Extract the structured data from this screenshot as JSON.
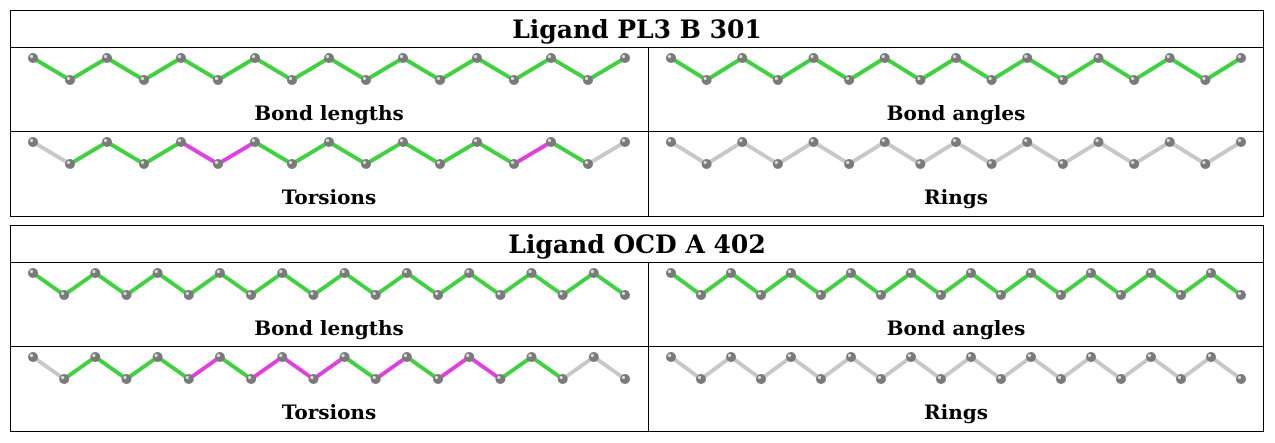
{
  "colors": {
    "ok_bond": "#3fd13f",
    "outlier_bond": "#e040e0",
    "neutral_bond": "#c8c8c8",
    "atom": "#7a7a7a"
  },
  "panel_labels": {
    "bond_lengths": "Bond lengths",
    "bond_angles": "Bond angles",
    "torsions": "Torsions",
    "rings": "Rings"
  },
  "ligands": [
    {
      "title": "Ligand PL3 B 301",
      "panels": {
        "bond_lengths": [
          "ok",
          "ok",
          "ok",
          "ok",
          "ok",
          "ok",
          "ok",
          "ok",
          "ok",
          "ok",
          "ok",
          "ok",
          "ok",
          "ok",
          "ok",
          "ok"
        ],
        "bond_angles": [
          "ok",
          "ok",
          "ok",
          "ok",
          "ok",
          "ok",
          "ok",
          "ok",
          "ok",
          "ok",
          "ok",
          "ok",
          "ok",
          "ok",
          "ok",
          "ok"
        ],
        "torsions": [
          "neutral",
          "ok",
          "ok",
          "ok",
          "outlier",
          "outlier",
          "ok",
          "ok",
          "ok",
          "ok",
          "ok",
          "ok",
          "ok",
          "outlier",
          "ok",
          "neutral"
        ],
        "rings": [
          "neutral",
          "neutral",
          "neutral",
          "neutral",
          "neutral",
          "neutral",
          "neutral",
          "neutral",
          "neutral",
          "neutral",
          "neutral",
          "neutral",
          "neutral",
          "neutral",
          "neutral",
          "neutral"
        ]
      }
    },
    {
      "title": "Ligand OCD A 402",
      "panels": {
        "bond_lengths": [
          "ok",
          "ok",
          "ok",
          "ok",
          "ok",
          "ok",
          "ok",
          "ok",
          "ok",
          "ok",
          "ok",
          "ok",
          "ok",
          "ok",
          "ok",
          "ok",
          "ok",
          "ok",
          "ok"
        ],
        "bond_angles": [
          "ok",
          "ok",
          "ok",
          "ok",
          "ok",
          "ok",
          "ok",
          "ok",
          "ok",
          "ok",
          "ok",
          "ok",
          "ok",
          "ok",
          "ok",
          "ok",
          "ok",
          "ok",
          "ok"
        ],
        "torsions": [
          "neutral",
          "ok",
          "ok",
          "ok",
          "ok",
          "outlier",
          "ok",
          "outlier",
          "outlier",
          "outlier",
          "ok",
          "outlier",
          "ok",
          "outlier",
          "outlier",
          "ok",
          "ok",
          "neutral",
          "neutral"
        ],
        "rings": [
          "neutral",
          "neutral",
          "neutral",
          "neutral",
          "neutral",
          "neutral",
          "neutral",
          "neutral",
          "neutral",
          "neutral",
          "neutral",
          "neutral",
          "neutral",
          "neutral",
          "neutral",
          "neutral",
          "neutral",
          "neutral",
          "neutral"
        ]
      }
    }
  ]
}
